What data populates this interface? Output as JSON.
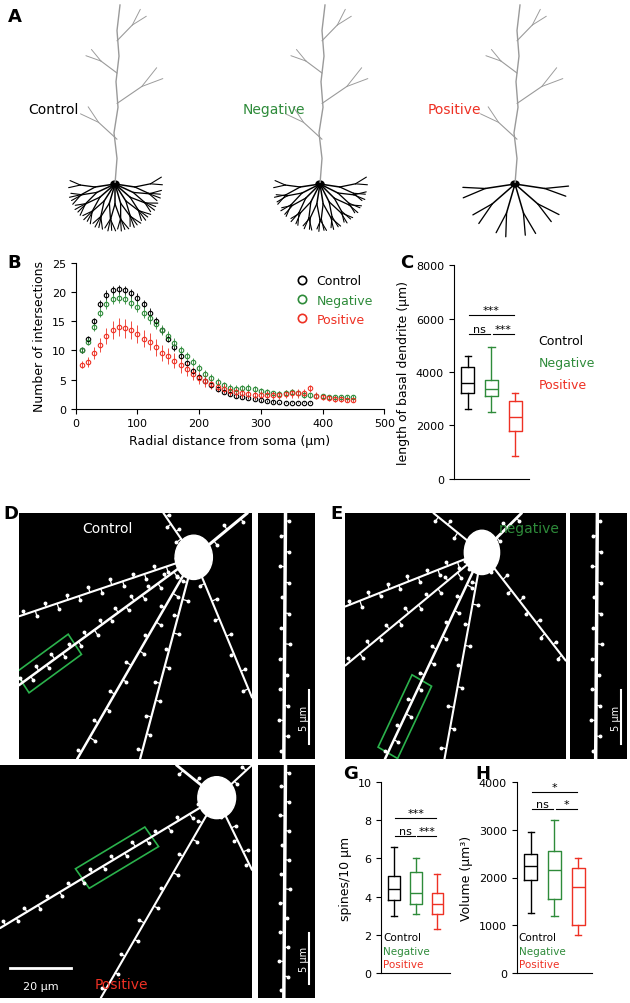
{
  "panels": {
    "A": {
      "panel": "A",
      "neurons": [
        {
          "name": "Control",
          "color": "#000000"
        },
        {
          "name": "Negative",
          "color": "#2e8b3a"
        },
        {
          "name": "Positive",
          "color": "#ee3124"
        }
      ]
    },
    "D": {
      "panel": "D",
      "name": "Control",
      "name_color": "#ffffff",
      "inset_scale_bar": "5 μm"
    },
    "E": {
      "panel": "E",
      "name": "negative",
      "name_color": "#2e8b3a",
      "inset_scale_bar": "5 μm"
    },
    "F": {
      "name": "Positive",
      "name_color": "#ee3124",
      "scale_bar": "20 μm",
      "inset_scale_bar": "5 μm"
    }
  },
  "chart_data": [
    {
      "type": "scatter",
      "panel": "B",
      "x_label": "Radial distance from soma (μm)",
      "y_label": "Number of intersections",
      "xlim": [
        0,
        500
      ],
      "xticks": [
        0,
        100,
        200,
        300,
        400,
        500
      ],
      "ylim": [
        0,
        25
      ],
      "yticks": [
        0,
        5,
        10,
        15,
        20,
        25
      ],
      "legend": "upper right",
      "series": [
        {
          "name": "Control",
          "color": "#000000",
          "marker": "o",
          "x": [
            10,
            20,
            30,
            40,
            50,
            60,
            70,
            80,
            90,
            100,
            110,
            120,
            130,
            140,
            150,
            160,
            170,
            180,
            190,
            200,
            210,
            220,
            230,
            240,
            250,
            260,
            270,
            280,
            290,
            300,
            310,
            320,
            330,
            340,
            350,
            360,
            370,
            380
          ],
          "values": [
            10,
            12,
            15,
            18,
            19.5,
            20.3,
            20.5,
            20.3,
            19.8,
            19,
            18,
            16.5,
            15,
            13.5,
            12,
            10.5,
            9,
            7.8,
            6.5,
            5.5,
            4.8,
            4,
            3.4,
            2.9,
            2.5,
            2.2,
            2,
            1.8,
            1.6,
            1.4,
            1.3,
            1.2,
            1.1,
            1,
            1,
            1,
            1,
            1
          ],
          "errors": [
            0.4,
            0.5,
            0.6,
            0.7,
            0.8,
            0.8,
            0.8,
            0.8,
            0.8,
            0.8,
            0.7,
            0.7,
            0.7,
            0.6,
            0.6,
            0.6,
            0.5,
            0.5,
            0.5,
            0.4,
            0.4,
            0.4,
            0.3,
            0.3,
            0.3,
            0.3,
            0.2,
            0.2,
            0.2,
            0.2,
            0.2,
            0.2,
            0.1,
            0.1,
            0.1,
            0.1,
            0.1,
            0.1
          ]
        },
        {
          "name": "Negative",
          "color": "#2e8b3a",
          "marker": "o",
          "x": [
            10,
            20,
            30,
            40,
            50,
            60,
            70,
            80,
            90,
            100,
            110,
            120,
            130,
            140,
            150,
            160,
            170,
            180,
            190,
            200,
            210,
            220,
            230,
            240,
            250,
            260,
            270,
            280,
            290,
            300,
            310,
            320,
            330,
            340,
            350,
            360,
            370,
            380,
            390,
            400,
            410,
            420,
            430,
            440,
            450
          ],
          "values": [
            10,
            11.5,
            14,
            16.5,
            18,
            18.8,
            19,
            18.8,
            18.2,
            17.5,
            16.5,
            15.5,
            14.5,
            13.5,
            12.5,
            11.3,
            10,
            9,
            8,
            7,
            6,
            5.2,
            4.6,
            4,
            3.6,
            3.4,
            3.5,
            3.6,
            3.3,
            3,
            2.8,
            2.6,
            2.5,
            2.7,
            2.8,
            2.6,
            2.4,
            2.3,
            2.2,
            2.1,
            2,
            2,
            2,
            2,
            2
          ],
          "errors": [
            0.5,
            0.6,
            0.7,
            0.8,
            0.9,
            0.9,
            0.9,
            0.9,
            0.9,
            0.9,
            0.9,
            0.9,
            0.8,
            0.8,
            0.8,
            0.8,
            0.8,
            0.7,
            0.7,
            0.7,
            0.7,
            0.7,
            0.6,
            0.6,
            0.6,
            0.6,
            0.6,
            0.6,
            0.6,
            0.6,
            0.6,
            0.5,
            0.5,
            0.5,
            0.5,
            0.5,
            0.5,
            0.4,
            0.4,
            0.4,
            0.4,
            0.3,
            0.3,
            0.3,
            0.3
          ]
        },
        {
          "name": "Positive",
          "color": "#ee3124",
          "marker": "o",
          "x": [
            10,
            20,
            30,
            40,
            50,
            60,
            70,
            80,
            90,
            100,
            110,
            120,
            130,
            140,
            150,
            160,
            170,
            180,
            190,
            200,
            210,
            220,
            230,
            240,
            250,
            260,
            270,
            280,
            290,
            300,
            310,
            320,
            330,
            340,
            350,
            360,
            370,
            380,
            390,
            400,
            410,
            420,
            430,
            440,
            450
          ],
          "values": [
            7.5,
            8,
            9.5,
            11,
            12.5,
            13.5,
            14,
            13.8,
            13.5,
            12.8,
            12,
            11.5,
            10.5,
            9.5,
            9,
            8.2,
            7.5,
            6.8,
            6,
            5.3,
            4.8,
            4.2,
            3.8,
            3.4,
            3,
            2.8,
            2.6,
            2.5,
            2.4,
            2.3,
            2.3,
            2.3,
            2.4,
            2.5,
            2.6,
            2.6,
            2.7,
            3.5,
            2.2,
            2,
            1.8,
            1.7,
            1.6,
            1.5,
            1.5
          ],
          "errors": [
            0.6,
            0.8,
            1,
            1.2,
            1.4,
            1.5,
            1.6,
            1.6,
            1.6,
            1.6,
            1.5,
            1.5,
            1.5,
            1.4,
            1.4,
            1.3,
            1.3,
            1.2,
            1.1,
            1,
            1,
            0.9,
            0.9,
            0.8,
            0.8,
            0.8,
            0.7,
            0.7,
            0.7,
            0.7,
            0.7,
            0.7,
            0.7,
            0.7,
            0.7,
            0.7,
            0.7,
            0.6,
            0.6,
            0.5,
            0.5,
            0.5,
            0.4,
            0.4,
            0.4
          ]
        }
      ]
    },
    {
      "type": "box",
      "panel": "C",
      "y_label": "length of basal dendrite (μm)",
      "ylim": [
        0,
        8000
      ],
      "yticks": [
        0,
        2000,
        4000,
        6000,
        8000
      ],
      "tick_labels": "y",
      "series": [
        {
          "name": "Control",
          "color": "#000000",
          "stats": {
            "min": 2600,
            "q1": 3200,
            "median": 3600,
            "q3": 4200,
            "max": 4600
          }
        },
        {
          "name": "Negative",
          "color": "#2e8b3a",
          "stats": {
            "min": 2500,
            "q1": 3100,
            "median": 3350,
            "q3": 3700,
            "max": 4950
          }
        },
        {
          "name": "Positive",
          "color": "#ee3124",
          "stats": {
            "min": 850,
            "q1": 1800,
            "median": 2300,
            "q3": 2900,
            "max": 3200
          }
        }
      ],
      "comparisons": [
        {
          "pair": [
            "Control",
            "Positive"
          ],
          "label": "***"
        },
        {
          "pair": [
            "Control",
            "Negative"
          ],
          "label": "ns"
        },
        {
          "pair": [
            "Negative",
            "Positive"
          ],
          "label": "***"
        }
      ]
    },
    {
      "type": "box",
      "panel": "G",
      "y_label": "spines/10 μm",
      "ylim": [
        0,
        10
      ],
      "yticks": [
        0,
        2,
        4,
        6,
        8,
        10
      ],
      "tick_labels": "y",
      "series": [
        {
          "name": "Control",
          "color": "#000000",
          "stats": {
            "min": 3.0,
            "q1": 3.8,
            "median": 4.4,
            "q3": 5.1,
            "max": 6.6
          }
        },
        {
          "name": "Negative",
          "color": "#2e8b3a",
          "stats": {
            "min": 3.1,
            "q1": 3.6,
            "median": 4.2,
            "q3": 5.3,
            "max": 6.0
          }
        },
        {
          "name": "Positive",
          "color": "#ee3124",
          "stats": {
            "min": 2.3,
            "q1": 3.1,
            "median": 3.6,
            "q3": 4.2,
            "max": 5.2
          }
        }
      ],
      "comparisons": [
        {
          "pair": [
            "Control",
            "Positive"
          ],
          "label": "***"
        },
        {
          "pair": [
            "Control",
            "Negative"
          ],
          "label": "ns"
        },
        {
          "pair": [
            "Negative",
            "Positive"
          ],
          "label": "***"
        }
      ]
    },
    {
      "type": "box",
      "panel": "H",
      "y_label": "Volume (μm³)",
      "ylim": [
        0,
        4000
      ],
      "yticks": [
        0,
        1000,
        2000,
        3000,
        4000
      ],
      "tick_labels": "y",
      "series": [
        {
          "name": "Control",
          "color": "#000000",
          "stats": {
            "min": 1250,
            "q1": 1950,
            "median": 2250,
            "q3": 2500,
            "max": 2950
          }
        },
        {
          "name": "Negative",
          "color": "#2e8b3a",
          "stats": {
            "min": 1200,
            "q1": 1550,
            "median": 2150,
            "q3": 2550,
            "max": 3200
          }
        },
        {
          "name": "Positive",
          "color": "#ee3124",
          "stats": {
            "min": 800,
            "q1": 1000,
            "median": 1800,
            "q3": 2200,
            "max": 2400
          }
        }
      ],
      "comparisons": [
        {
          "pair": [
            "Control",
            "Positive"
          ],
          "label": "*"
        },
        {
          "pair": [
            "Control",
            "Negative"
          ],
          "label": "ns"
        },
        {
          "pair": [
            "Negative",
            "Positive"
          ],
          "label": "*"
        }
      ]
    }
  ]
}
